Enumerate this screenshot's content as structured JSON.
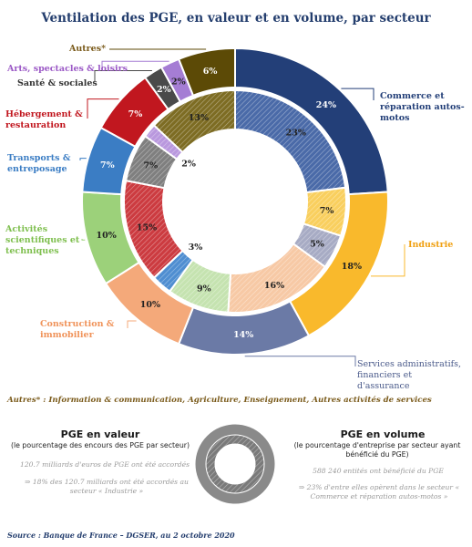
{
  "title": "Ventilation des PGE, en valeur et en volume, par secteur",
  "chart_data": {
    "type": "pie",
    "subtype": "double-donut",
    "title": "Ventilation des PGE, en valeur et en volume, par secteur",
    "categories": [
      "Commerce et réparation autos-motos",
      "Industrie",
      "Services administratifs, financiers et d'assurance",
      "Construction & immobilier",
      "Activités scientifiques et techniques",
      "Transports & entreposage",
      "Hébergement & restauration",
      "Santé & sociales",
      "Arts, spectacles & loisirs",
      "Autres*"
    ],
    "colors": [
      "#233f78",
      "#f9b92c",
      "#6b7aa6",
      "#f4a97a",
      "#9cd17a",
      "#3b7dc4",
      "#c1171f",
      "#4a4a4a",
      "#a57dd4",
      "#5c4a06"
    ],
    "inner_colors": [
      "#4a6aa8",
      "#f9cf5e",
      "#a7abc4",
      "#f7c9a5",
      "#c5e3b0",
      "#4f8ed1",
      "#cc3b40",
      "#7f7f7f",
      "#b998de",
      "#7d6c23"
    ],
    "series": [
      {
        "name": "PGE en valeur",
        "ring": "outer",
        "values": [
          24,
          18,
          14,
          10,
          10,
          7,
          7,
          2,
          2,
          6
        ]
      },
      {
        "name": "PGE en volume",
        "ring": "inner",
        "values": [
          23,
          7,
          5,
          16,
          9,
          3,
          15,
          7,
          2,
          13
        ]
      }
    ],
    "outer_labels": [
      "24%",
      "18%",
      "14%",
      "10%",
      "10%",
      "7%",
      "7%",
      "2%",
      "2%",
      "6%"
    ],
    "inner_labels": [
      "23%",
      "7%",
      "5%",
      "16%",
      "9%",
      "3%",
      "15%",
      "7%",
      "2%",
      "13%"
    ]
  },
  "category_labels": {
    "commerce": "Commerce et réparation autos-motos",
    "industrie": "Industrie",
    "services": "Services administratifs, financiers et d'assurance",
    "construction": "Construction & immobilier",
    "activites": "Activités scientifiques et techniques",
    "transports": "Transports & entreposage",
    "hebergement": "Hébergement & restauration",
    "sante": "Santé & sociales",
    "arts": "Arts, spectacles & loisirs",
    "autres": "Autres*"
  },
  "autres_note": "Autres* : Information & communication, Agriculture, Enseignement, Autres activités de services",
  "legend": {
    "valeur_title": "PGE en valeur",
    "valeur_sub": "(le pourcentage des encours des PGE par secteur)",
    "valeur_note1": "120.7 milliards d'euros de PGE ont été accordés",
    "valeur_note2": "⇒ 18% des 120.7 milliards ont été accordés au secteur « Industrie »",
    "volume_title": "PGE en volume",
    "volume_sub": "(le pourcentage d'entreprise par secteur ayant bénéficié du PGE)",
    "volume_note1": "588 240 entités ont bénéficié du PGE",
    "volume_note2": "⇒ 23% d'entre elles opèrent dans le secteur « Commerce et réparation autos-motos »"
  },
  "source": "Source : Banque de France – DGSER, au 2 octobre 2020"
}
